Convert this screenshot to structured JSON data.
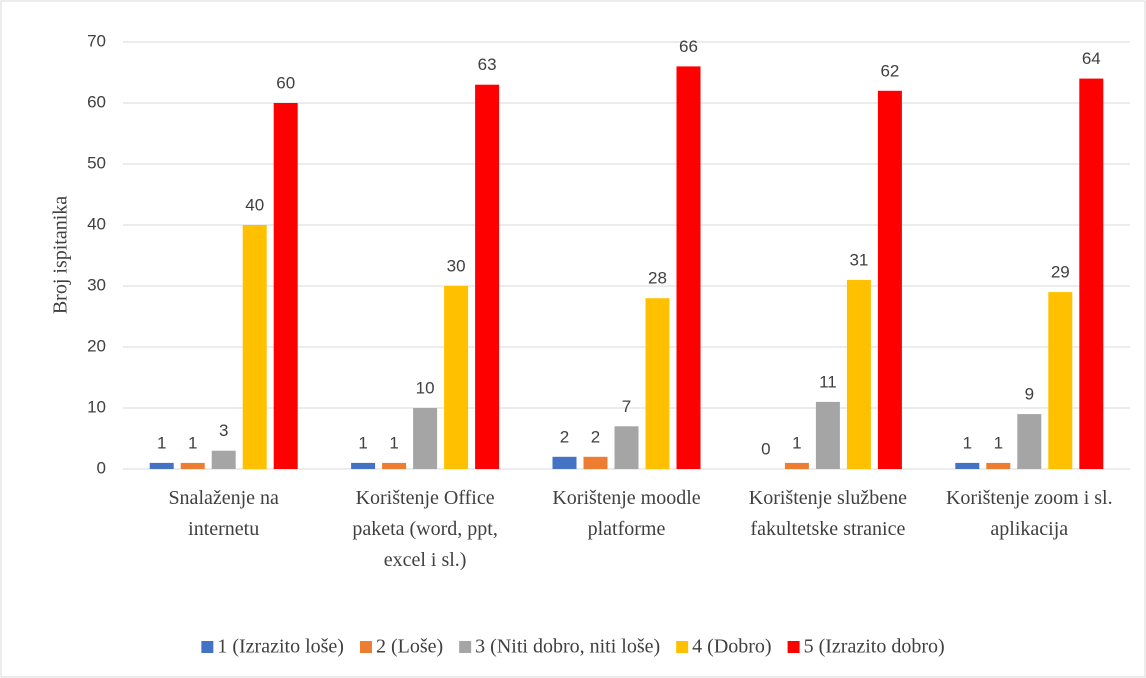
{
  "chart_data": {
    "type": "bar",
    "y_label": "Broj ispitanika",
    "categories": [
      "Snalaženje na internetu",
      "Korištenje Office paketa (word, ppt, excel i sl.)",
      "Korištenje moodle platforme",
      "Korištenje službene fakultetske stranice",
      "Korištenje zoom i sl. aplikacija"
    ],
    "series": [
      {
        "name": "1 (Izrazito loše)",
        "color": "#4472c4",
        "values": [
          1,
          1,
          2,
          0,
          1
        ]
      },
      {
        "name": "2 (Loše)",
        "color": "#ed7d31",
        "values": [
          1,
          1,
          2,
          1,
          1
        ]
      },
      {
        "name": "3 (Niti dobro, niti loše)",
        "color": "#a5a5a5",
        "values": [
          3,
          10,
          7,
          11,
          9
        ]
      },
      {
        "name": "4 (Dobro)",
        "color": "#ffc000",
        "values": [
          40,
          30,
          28,
          31,
          29
        ]
      },
      {
        "name": "5 (Izrazito dobro)",
        "color": "#ff0000",
        "values": [
          60,
          63,
          66,
          62,
          64
        ]
      }
    ],
    "ylim": [
      0,
      70
    ],
    "yticks": [
      0,
      10,
      20,
      30,
      40,
      50,
      60,
      70
    ],
    "grid": true,
    "legend": "bottom"
  }
}
